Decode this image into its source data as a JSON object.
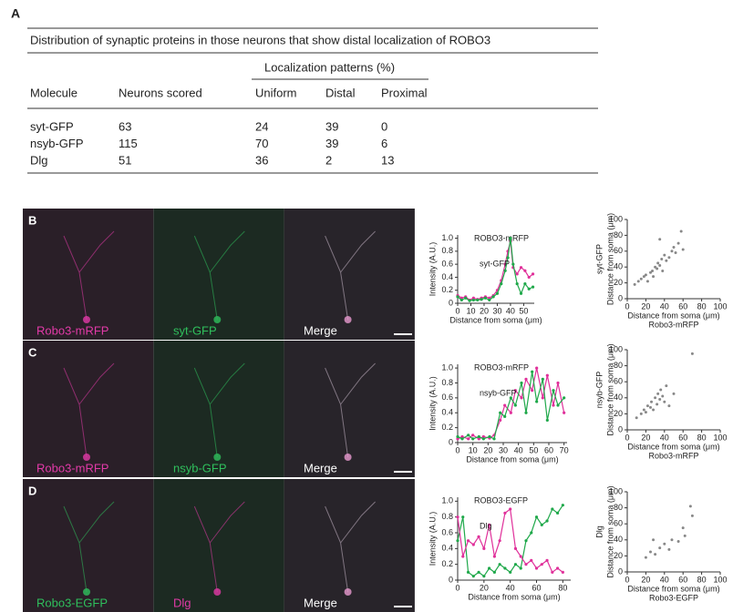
{
  "panel_label_a": "A",
  "table": {
    "title": "Distribution of synaptic proteins in those neurons that show distal localization of ROBO3",
    "group_header": "Localization patterns (%)",
    "columns": [
      "Molecule",
      "Neurons scored",
      "Uniform",
      "Distal",
      "Proximal"
    ],
    "rows": [
      [
        "syt-GFP",
        63,
        24,
        39,
        0
      ],
      [
        "nsyb-GFP",
        115,
        70,
        39,
        6
      ],
      [
        "Dlg",
        51,
        36,
        2,
        13
      ]
    ]
  },
  "panels": [
    {
      "label": "B",
      "channels": [
        "Robo3-mRFP",
        "syt-GFP",
        "Merge"
      ]
    },
    {
      "label": "C",
      "channels": [
        "Robo3-mRFP",
        "nsyb-GFP",
        "Merge"
      ]
    },
    {
      "label": "D",
      "channels": [
        "Robo3-EGFP",
        "Dlg",
        "Merge"
      ]
    }
  ],
  "chart_data": [
    {
      "type": "line",
      "x_label": "Distance from soma (μm)",
      "y_label": "Intensity (A.U.)",
      "xlim": [
        0,
        58
      ],
      "xticks": [
        0,
        10,
        20,
        30,
        40,
        50
      ],
      "ylim": [
        0,
        1.05
      ],
      "yticks": [
        0,
        0.2,
        0.4,
        0.6,
        0.8,
        {
          "value": 1,
          "label": "1.0"
        }
      ],
      "x": [
        0,
        3,
        6,
        9,
        12,
        15,
        18,
        21,
        24,
        27,
        30,
        33,
        36,
        38,
        40,
        42,
        45,
        48,
        51,
        54,
        57
      ],
      "series": [
        {
          "name": "ROBO3-mRFP",
          "color": "#e0309a",
          "values": [
            0.12,
            0.08,
            0.1,
            0.05,
            0.08,
            0.06,
            0.08,
            0.1,
            0.08,
            0.12,
            0.2,
            0.35,
            0.6,
            0.8,
            0.95,
            0.55,
            0.45,
            0.55,
            0.5,
            0.4,
            0.45
          ]
        },
        {
          "name": "syt-GFP",
          "color": "#1fa84a",
          "values": [
            0.1,
            0.05,
            0.08,
            0.04,
            0.05,
            0.05,
            0.06,
            0.08,
            0.05,
            0.1,
            0.15,
            0.3,
            0.5,
            0.7,
            1.0,
            0.6,
            0.3,
            0.15,
            0.3,
            0.22,
            0.25
          ]
        }
      ]
    },
    {
      "type": "scatter",
      "x_label": "Distance from soma (μm)",
      "x_sublabel": "Robo3-mRFP",
      "y_label": "Distance from soma (μm)",
      "y_sublabel": "syt-GFP",
      "xlim": [
        0,
        100
      ],
      "xticks": [
        0,
        20,
        40,
        60,
        80,
        100
      ],
      "ylim": [
        0,
        100
      ],
      "yticks": [
        0,
        20,
        40,
        60,
        80,
        100
      ],
      "color": "#888888",
      "x": [
        8,
        12,
        15,
        18,
        20,
        22,
        25,
        27,
        28,
        30,
        32,
        33,
        35,
        37,
        38,
        40,
        42,
        45,
        48,
        50,
        52,
        55,
        58,
        60,
        35
      ],
      "values": [
        18,
        22,
        25,
        28,
        30,
        22,
        33,
        35,
        28,
        40,
        38,
        45,
        42,
        50,
        35,
        55,
        48,
        52,
        60,
        65,
        58,
        70,
        85,
        62,
        75
      ]
    },
    {
      "type": "line",
      "x_label": "Distance from soma (μm)",
      "y_label": "Intensity (A.U.)",
      "xlim": [
        0,
        72
      ],
      "xticks": [
        0,
        10,
        20,
        30,
        40,
        50,
        60,
        70
      ],
      "ylim": [
        0,
        1.05
      ],
      "yticks": [
        0,
        0.2,
        0.4,
        0.6,
        0.8,
        {
          "value": 1,
          "label": "1.0"
        }
      ],
      "x": [
        0,
        3,
        7,
        10,
        14,
        17,
        21,
        24,
        28,
        31,
        35,
        38,
        42,
        45,
        49,
        52,
        56,
        59,
        63,
        66,
        70
      ],
      "series": [
        {
          "name": "ROBO3-mRFP",
          "color": "#e0309a",
          "values": [
            0.05,
            0.08,
            0.05,
            0.1,
            0.05,
            0.08,
            0.06,
            0.1,
            0.3,
            0.5,
            0.4,
            0.7,
            0.6,
            0.85,
            0.7,
            1.0,
            0.6,
            0.9,
            0.5,
            0.8,
            0.4
          ]
        },
        {
          "name": "nsyb-GFP",
          "color": "#1fa84a",
          "values": [
            0.08,
            0.05,
            0.1,
            0.05,
            0.08,
            0.05,
            0.08,
            0.05,
            0.4,
            0.35,
            0.6,
            0.5,
            0.8,
            0.4,
            0.95,
            0.55,
            0.85,
            0.3,
            0.7,
            0.5,
            0.6
          ]
        }
      ]
    },
    {
      "type": "scatter",
      "x_label": "Distance from soma (μm)",
      "x_sublabel": "Robo3-mRFP",
      "y_label": "Distance from soma (μm)",
      "y_sublabel": "nsyb-GFP",
      "xlim": [
        0,
        100
      ],
      "xticks": [
        0,
        20,
        40,
        60,
        80,
        100
      ],
      "ylim": [
        0,
        100
      ],
      "yticks": [
        0,
        20,
        40,
        60,
        80,
        100
      ],
      "color": "#888888",
      "x": [
        10,
        15,
        18,
        20,
        22,
        25,
        26,
        28,
        30,
        32,
        33,
        35,
        36,
        38,
        40,
        42,
        45,
        50,
        70
      ],
      "values": [
        15,
        20,
        25,
        22,
        30,
        28,
        35,
        25,
        40,
        32,
        45,
        38,
        50,
        42,
        35,
        55,
        30,
        45,
        95
      ]
    },
    {
      "type": "line",
      "x_label": "Distance from soma (μm)",
      "y_label": "Intensity (A.U.)",
      "xlim": [
        0,
        86
      ],
      "xticks": [
        0,
        20,
        40,
        60,
        80
      ],
      "ylim": [
        0,
        1.05
      ],
      "yticks": [
        0,
        0.2,
        0.4,
        0.6,
        0.8,
        {
          "value": 1,
          "label": "1.0"
        }
      ],
      "x": [
        0,
        4,
        8,
        12,
        16,
        20,
        24,
        28,
        32,
        36,
        40,
        44,
        48,
        52,
        56,
        60,
        64,
        68,
        72,
        76,
        80
      ],
      "series": [
        {
          "name": "ROBO3-EGFP",
          "color": "#1fa84a",
          "values": [
            0.5,
            0.8,
            0.1,
            0.05,
            0.1,
            0.05,
            0.15,
            0.1,
            0.2,
            0.15,
            0.1,
            0.2,
            0.15,
            0.5,
            0.6,
            0.8,
            0.7,
            0.75,
            0.9,
            0.85,
            0.95
          ]
        },
        {
          "name": "Dlg",
          "color": "#e0309a",
          "values": [
            0.8,
            0.3,
            0.5,
            0.45,
            0.55,
            0.4,
            0.7,
            0.3,
            0.5,
            0.85,
            0.9,
            0.4,
            0.3,
            0.2,
            0.25,
            0.15,
            0.2,
            0.25,
            0.1,
            0.15,
            0.1
          ]
        }
      ]
    },
    {
      "type": "scatter",
      "x_label": "Distance from soma (μm)",
      "x_sublabel": "Robo3-EGFP",
      "y_label": "Distance from soma (μm)",
      "y_sublabel": "Dlg",
      "xlim": [
        0,
        100
      ],
      "xticks": [
        0,
        20,
        40,
        60,
        80,
        100
      ],
      "ylim": [
        0,
        100
      ],
      "yticks": [
        0,
        20,
        40,
        60,
        80,
        100
      ],
      "color": "#888888",
      "x": [
        20,
        25,
        28,
        30,
        35,
        40,
        45,
        48,
        55,
        60,
        62,
        68,
        70
      ],
      "values": [
        18,
        25,
        40,
        22,
        30,
        35,
        28,
        40,
        38,
        55,
        45,
        82,
        70
      ]
    }
  ]
}
